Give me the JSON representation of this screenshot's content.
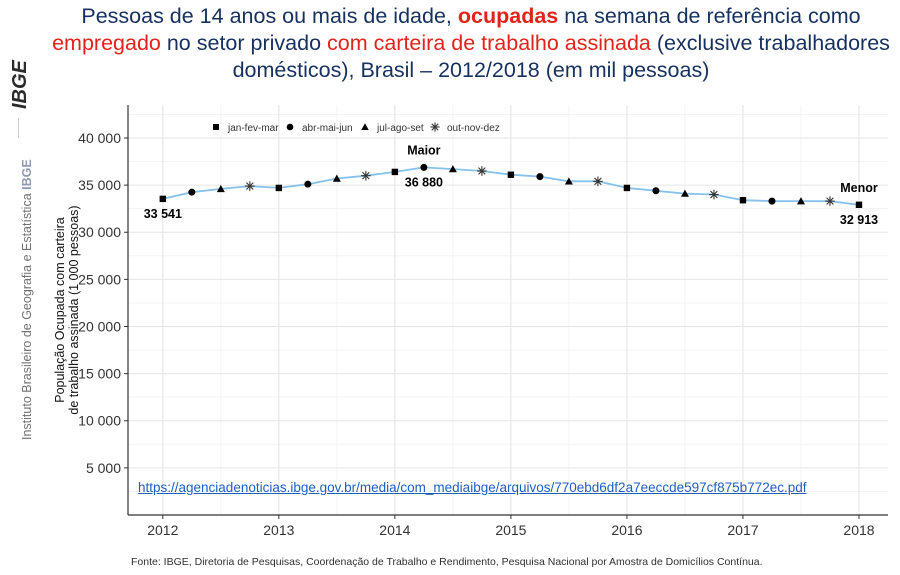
{
  "header": {
    "title_parts": [
      "Pessoas de 14 anos ou mais de idade, ",
      "ocupadas",
      " na semana de referência como ",
      "empregado",
      " no setor privado ",
      "com carteira de trabalho assinada",
      " (exclusive trabalhadores domésticos), Brasil – 2012/2018 (em mil pessoas)"
    ]
  },
  "sidebar": {
    "logo_text": "IBGE",
    "institution": "Instituto Brasileiro de Geografia e Estatística",
    "abbr": "IBGE"
  },
  "chart_data": {
    "type": "line",
    "title": "Pessoas de 14 anos ou mais de idade, ocupadas na semana de referência como empregado no setor privado com carteira de trabalho assinada (exclusive trabalhadores domésticos), Brasil – 2012/2018 (em mil pessoas)",
    "xlabel": "",
    "ylabel_lines": [
      "População Ocupada com carteira",
      "de trabalho assinada (1 000 pessoas)"
    ],
    "ylim": [
      0,
      43500
    ],
    "y_ticks": [
      5000,
      10000,
      15000,
      20000,
      25000,
      30000,
      35000,
      40000
    ],
    "y_tick_labels": [
      "5 000",
      "10 000",
      "15 000",
      "20 000",
      "25 000",
      "30 000",
      "35 000",
      "40 000"
    ],
    "x_ticks": [
      2012,
      2013,
      2014,
      2015,
      2016,
      2017,
      2018
    ],
    "x_tick_labels": [
      "2012",
      "2013",
      "2014",
      "2015",
      "2016",
      "2017",
      "2018"
    ],
    "xlim": [
      2011.7,
      2018.25
    ],
    "line_color": "#86c1ea",
    "legend": [
      {
        "marker": "square",
        "label": "jan-fev-mar"
      },
      {
        "marker": "circle",
        "label": "abr-mai-jun"
      },
      {
        "marker": "triangle",
        "label": "jul-ago-set"
      },
      {
        "marker": "asterisk",
        "label": "out-nov-dez"
      }
    ],
    "series": [
      {
        "name": "População ocupada com carteira assinada",
        "points": [
          {
            "x": 2012.0,
            "y": 33541,
            "marker": "square"
          },
          {
            "x": 2012.25,
            "y": 34250,
            "marker": "circle"
          },
          {
            "x": 2012.5,
            "y": 34600,
            "marker": "triangle"
          },
          {
            "x": 2012.75,
            "y": 34900,
            "marker": "asterisk"
          },
          {
            "x": 2013.0,
            "y": 34700,
            "marker": "square"
          },
          {
            "x": 2013.25,
            "y": 35100,
            "marker": "circle"
          },
          {
            "x": 2013.5,
            "y": 35700,
            "marker": "triangle"
          },
          {
            "x": 2013.75,
            "y": 36000,
            "marker": "asterisk"
          },
          {
            "x": 2014.0,
            "y": 36400,
            "marker": "square"
          },
          {
            "x": 2014.25,
            "y": 36880,
            "marker": "circle"
          },
          {
            "x": 2014.5,
            "y": 36700,
            "marker": "triangle"
          },
          {
            "x": 2014.75,
            "y": 36500,
            "marker": "asterisk"
          },
          {
            "x": 2015.0,
            "y": 36100,
            "marker": "square"
          },
          {
            "x": 2015.25,
            "y": 35900,
            "marker": "circle"
          },
          {
            "x": 2015.5,
            "y": 35400,
            "marker": "triangle"
          },
          {
            "x": 2015.75,
            "y": 35400,
            "marker": "asterisk"
          },
          {
            "x": 2016.0,
            "y": 34700,
            "marker": "square"
          },
          {
            "x": 2016.25,
            "y": 34400,
            "marker": "circle"
          },
          {
            "x": 2016.5,
            "y": 34100,
            "marker": "triangle"
          },
          {
            "x": 2016.75,
            "y": 34000,
            "marker": "asterisk"
          },
          {
            "x": 2017.0,
            "y": 33400,
            "marker": "square"
          },
          {
            "x": 2017.25,
            "y": 33300,
            "marker": "circle"
          },
          {
            "x": 2017.5,
            "y": 33300,
            "marker": "triangle"
          },
          {
            "x": 2017.75,
            "y": 33300,
            "marker": "asterisk"
          },
          {
            "x": 2018.0,
            "y": 32913,
            "marker": "square"
          }
        ]
      }
    ],
    "annotations": [
      {
        "text": "33 541",
        "x": 2012.0,
        "y": 33541,
        "position": "below"
      },
      {
        "text": "Maior",
        "x": 2014.25,
        "y": 36880,
        "position": "above",
        "bold": true
      },
      {
        "text": "36 880",
        "x": 2014.25,
        "y": 36880,
        "position": "below"
      },
      {
        "text": "Menor",
        "x": 2018.0,
        "y": 32913,
        "position": "above",
        "bold": true
      },
      {
        "text": "32 913",
        "x": 2018.0,
        "y": 32913,
        "position": "below"
      }
    ]
  },
  "link": {
    "text": "https://agenciadenoticias.ibge.gov.br/media/com_mediaibge/arquivos/770ebd6df2a7eeccde597cf875b772ec.pdf"
  },
  "footer": {
    "source": "Fonte: IBGE, Diretoria de Pesquisas, Coordenação de Trabalho e Rendimento, Pesquisa Nacional por Amostra de Domicílios Contínua."
  }
}
